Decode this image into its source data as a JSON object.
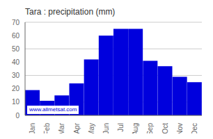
{
  "chart_data": {
    "type": "bar",
    "title": "Tara : precipitation (mm)",
    "categories": [
      "Jan",
      "Feb",
      "Mar",
      "Apr",
      "May",
      "Jun",
      "Jul",
      "Aug",
      "Sep",
      "Oct",
      "Nov",
      "Dec"
    ],
    "values": [
      19,
      11,
      15,
      24,
      42,
      60,
      65,
      65,
      41,
      37,
      29,
      25
    ],
    "color": "#0000DD",
    "ylim": [
      0,
      70
    ],
    "yticks": [
      0,
      10,
      20,
      30,
      40,
      50,
      60,
      70
    ],
    "grid": true,
    "annotations": [
      "www.allmetsat.com"
    ]
  }
}
